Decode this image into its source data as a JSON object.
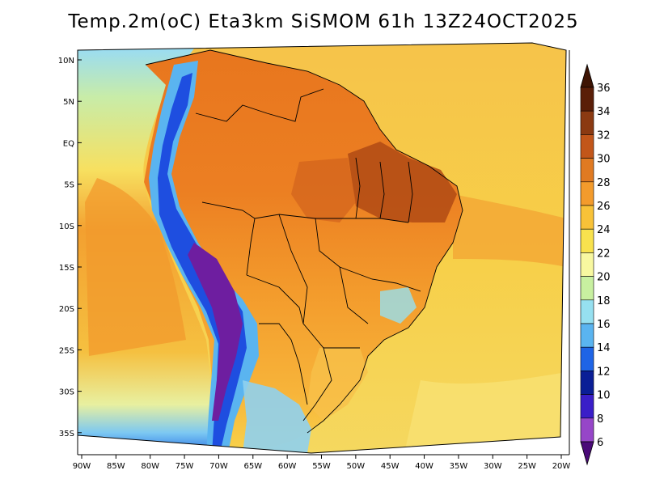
{
  "title": "Temp.2m(oC) Eta3km SiSMOM 61h 13Z24OCT2025",
  "map": {
    "lat_labels": [
      "10N",
      "5N",
      "EQ",
      "5S",
      "10S",
      "15S",
      "20S",
      "25S",
      "30S",
      "35S"
    ],
    "lon_labels": [
      "90W",
      "85W",
      "80W",
      "75W",
      "70W",
      "65W",
      "60W",
      "55W",
      "50W",
      "45W",
      "40W",
      "35W",
      "30W",
      "25W",
      "20W"
    ],
    "lon_range": [
      -90,
      -20
    ],
    "lat_range": [
      -37,
      10
    ]
  },
  "colorbar": {
    "labels": [
      "36",
      "34",
      "32",
      "30",
      "28",
      "26",
      "24",
      "22",
      "20",
      "18",
      "16",
      "14",
      "12",
      "10",
      "8",
      "6"
    ],
    "colors": [
      "#5a1e08",
      "#8b3a12",
      "#c2561a",
      "#e07a22",
      "#f39b2c",
      "#f8c238",
      "#f8e24e",
      "#f8f8a0",
      "#c8f0a0",
      "#96e0f0",
      "#5ab4f0",
      "#1e64e6",
      "#0a1e96",
      "#3a1ec8",
      "#9646c8",
      "#6e14a0"
    ],
    "top_color": "#3e1404",
    "bottom_color": "#4a0a78"
  }
}
